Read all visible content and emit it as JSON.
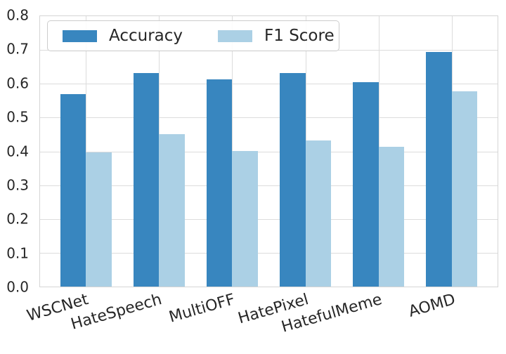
{
  "chart_data": {
    "type": "bar",
    "title": "",
    "xlabel": "",
    "ylabel": "",
    "categories": [
      "WSCNet",
      "HateSpeech",
      "MultiOFF",
      "HatePixel",
      "HatefulMeme",
      "AOMD"
    ],
    "series": [
      {
        "name": "Accuracy",
        "color": "#3886bf",
        "values": [
          0.57,
          0.631,
          0.614,
          0.632,
          0.604,
          0.694
        ]
      },
      {
        "name": "F1 Score",
        "color": "#abd0e5",
        "values": [
          0.396,
          0.45,
          0.401,
          0.433,
          0.414,
          0.578
        ]
      }
    ],
    "ylim": [
      0.0,
      0.8
    ],
    "ytick_labels": [
      "0.0",
      "0.1",
      "0.2",
      "0.3",
      "0.4",
      "0.5",
      "0.6",
      "0.7",
      "0.8"
    ],
    "xtick_rotation_deg": -16,
    "grid": "both",
    "grid_color": "#dcdcdc",
    "legend": {
      "position": "upper-left",
      "columns": 2
    }
  }
}
